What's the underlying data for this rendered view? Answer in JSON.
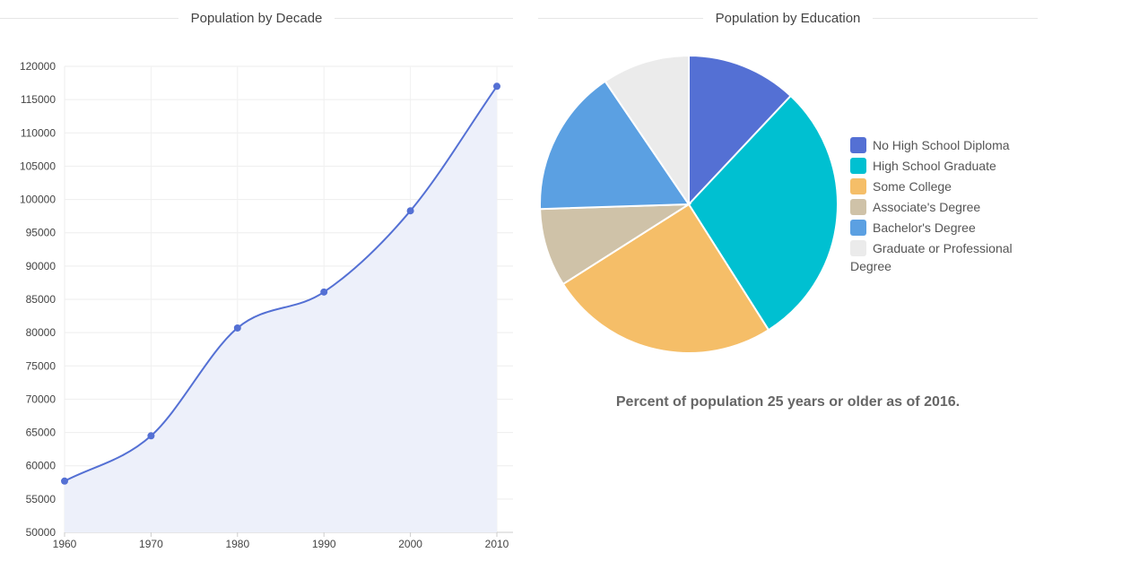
{
  "line_section": {
    "title": "Population by Decade"
  },
  "pie_section": {
    "title": "Population by Education",
    "caption": "Percent of population 25 years or older as of 2016."
  },
  "chart_data": [
    {
      "type": "area",
      "title": "Population by Decade",
      "xlabel": "",
      "ylabel": "",
      "x": [
        1960,
        1970,
        1980,
        1990,
        2000,
        2010
      ],
      "series": [
        {
          "values": [
            57700,
            64500,
            80700,
            86100,
            98300,
            117000
          ]
        }
      ],
      "ylim": [
        50000,
        120000
      ],
      "yticks": [
        50000,
        55000,
        60000,
        65000,
        70000,
        75000,
        80000,
        85000,
        90000,
        95000,
        100000,
        105000,
        110000,
        115000,
        120000
      ],
      "xticks": [
        1960,
        1970,
        1980,
        1990,
        2000,
        2010
      ],
      "grid": true,
      "line_color": "#5470d4",
      "fill_color": "#edf0fa"
    },
    {
      "type": "pie",
      "title": "Population by Education",
      "legend_position": "right",
      "labels": [
        "No High School Diploma",
        "High School Graduate",
        "Some College",
        "Associate's Degree",
        "Bachelor's Degree",
        "Graduate or Professional Degree"
      ],
      "values": [
        12,
        29,
        25,
        8.5,
        16,
        9.5
      ],
      "colors": [
        "#5470d4",
        "#00c0d1",
        "#f5be68",
        "#cfc2a8",
        "#5ba0e2",
        "#ebebeb"
      ]
    }
  ]
}
